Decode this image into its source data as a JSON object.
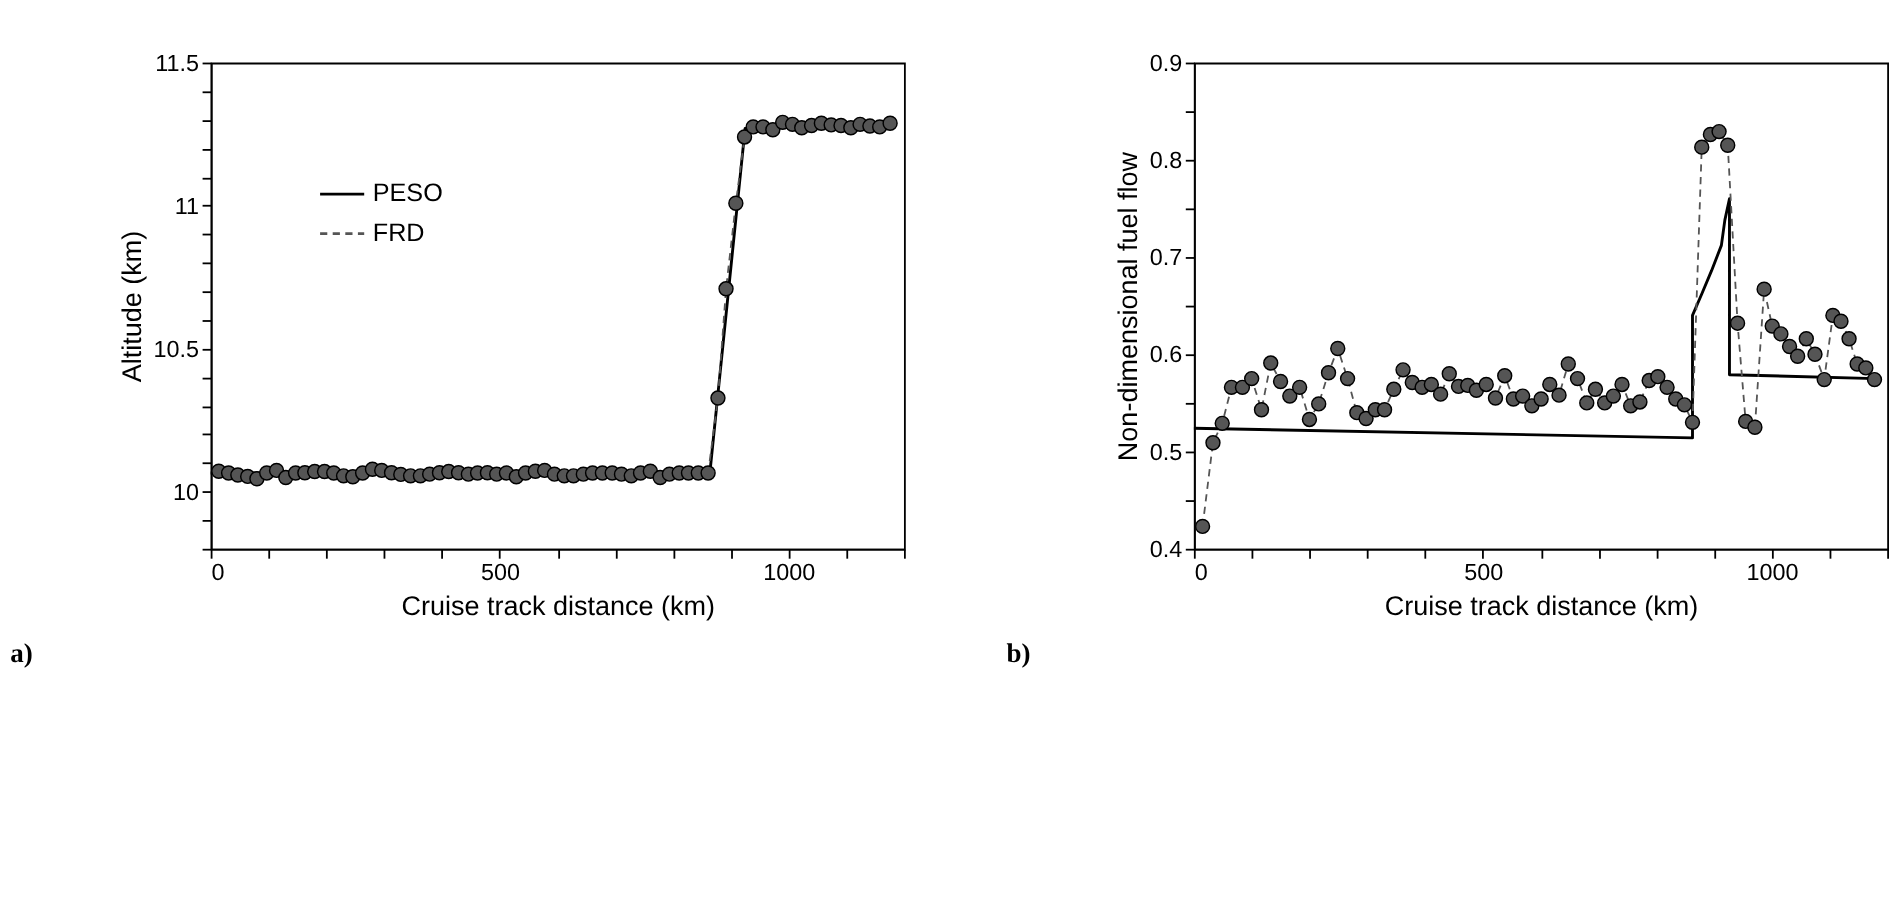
{
  "chart_data": [
    {
      "type": "line",
      "xlabel": "Cruise track distance (km)",
      "ylabel": "Altitude (km)",
      "annotations": [
        "a)"
      ],
      "xlim": [
        0,
        1200
      ],
      "ylim": [
        9.8,
        11.5
      ],
      "xticks": [
        0,
        {
          "value": 100,
          "label": null
        },
        {
          "value": 200,
          "label": null
        },
        {
          "value": 300,
          "label": null
        },
        {
          "value": 400,
          "label": null
        },
        500,
        {
          "value": 600,
          "label": null
        },
        {
          "value": 700,
          "label": null
        },
        {
          "value": 800,
          "label": null
        },
        {
          "value": 900,
          "label": null
        },
        1000,
        {
          "value": 1100,
          "label": null
        },
        {
          "value": 1200,
          "label": null
        }
      ],
      "yticks": [
        {
          "value": 9.8,
          "label": null
        },
        {
          "value": 9.9,
          "label": null
        },
        10,
        {
          "value": 10.1,
          "label": null
        },
        {
          "value": 10.2,
          "label": null
        },
        {
          "value": 10.3,
          "label": null
        },
        {
          "value": 10.4,
          "label": null
        },
        10.5,
        {
          "value": 10.6,
          "label": null
        },
        {
          "value": 10.7,
          "label": null
        },
        {
          "value": 10.8,
          "label": null
        },
        {
          "value": 10.9,
          "label": null
        },
        11,
        {
          "value": 11.1,
          "label": null
        },
        {
          "value": 11.2,
          "label": null
        },
        {
          "value": 11.3,
          "label": null
        },
        {
          "value": 11.4,
          "label": null
        },
        11.5
      ],
      "grid": false,
      "legend": "top left",
      "series": [
        {
          "name": "PESO",
          "color": "#000000",
          "line_style": "solid",
          "marker": "none",
          "x": [
            0,
            864,
            925,
            1176
          ],
          "values": [
            10.065,
            10.065,
            11.27,
            11.28
          ]
        },
        {
          "name": "FRD",
          "color": "#555555",
          "line_style": "dashed",
          "marker": "circle",
          "x": [
            14,
            31,
            47,
            64,
            80,
            97,
            114,
            130,
            147,
            163,
            180,
            197,
            213,
            230,
            246,
            263,
            280,
            296,
            313,
            329,
            346,
            363,
            379,
            396,
            412,
            429,
            446,
            462,
            479,
            495,
            512,
            529,
            545,
            562,
            578,
            595,
            612,
            628,
            645,
            661,
            678,
            695,
            711,
            728,
            744,
            761,
            778,
            794,
            811,
            827,
            844,
            861,
            878,
            892,
            909,
            924,
            939,
            956,
            973,
            990,
            1007,
            1023,
            1040,
            1057,
            1074,
            1091,
            1108,
            1124,
            1141,
            1158,
            1176
          ],
          "values": [
            10.071,
            10.065,
            10.058,
            10.053,
            10.045,
            10.065,
            10.074,
            10.049,
            10.065,
            10.066,
            10.07,
            10.07,
            10.065,
            10.055,
            10.052,
            10.065,
            10.078,
            10.074,
            10.066,
            10.06,
            10.055,
            10.055,
            10.061,
            10.066,
            10.07,
            10.066,
            10.061,
            10.065,
            10.066,
            10.061,
            10.065,
            10.052,
            10.065,
            10.071,
            10.074,
            10.061,
            10.055,
            10.055,
            10.061,
            10.065,
            10.065,
            10.065,
            10.061,
            10.055,
            10.065,
            10.071,
            10.049,
            10.061,
            10.065,
            10.065,
            10.065,
            10.065,
            10.327,
            10.709,
            11.008,
            11.24,
            11.275,
            11.275,
            11.265,
            11.291,
            11.284,
            11.272,
            11.28,
            11.288,
            11.282,
            11.28,
            11.272,
            11.284,
            11.278,
            11.275,
            11.288
          ]
        }
      ]
    },
    {
      "type": "line",
      "xlabel": "Cruise track distance (km)",
      "ylabel": "Non-dimensional fuel flow",
      "annotations": [
        "b)"
      ],
      "xlim": [
        0,
        1200
      ],
      "ylim": [
        0.4,
        0.9
      ],
      "xticks": [
        0,
        {
          "value": 100,
          "label": null
        },
        {
          "value": 200,
          "label": null
        },
        {
          "value": 300,
          "label": null
        },
        {
          "value": 400,
          "label": null
        },
        500,
        {
          "value": 600,
          "label": null
        },
        {
          "value": 700,
          "label": null
        },
        {
          "value": 800,
          "label": null
        },
        {
          "value": 900,
          "label": null
        },
        1000,
        {
          "value": 1100,
          "label": null
        },
        {
          "value": 1200,
          "label": null
        }
      ],
      "yticks": [
        0.4,
        {
          "value": 0.45,
          "label": null
        },
        0.5,
        {
          "value": 0.55,
          "label": null
        },
        0.6,
        {
          "value": 0.65,
          "label": null
        },
        0.7,
        {
          "value": 0.75,
          "label": null
        },
        0.8,
        {
          "value": 0.85,
          "label": null
        },
        0.9
      ],
      "grid": false,
      "legend": false,
      "series": [
        {
          "color": "#000000",
          "line_style": "solid",
          "marker": "none",
          "x": [
            0,
            863,
            863,
            879,
            896,
            913,
            919,
            927,
            927,
            1180
          ],
          "values": [
            0.524,
            0.514,
            0.64,
            0.662,
            0.686,
            0.712,
            0.738,
            0.76,
            0.579,
            0.575
          ]
        },
        {
          "color": "#555555",
          "line_style": "dashed",
          "marker": "circle",
          "x": [
            15,
            33,
            49,
            65,
            84,
            100,
            117,
            133,
            150,
            166,
            183,
            200,
            216,
            233,
            249,
            266,
            282,
            298,
            314,
            330,
            346,
            362,
            378,
            395,
            411,
            427,
            442,
            458,
            474,
            489,
            506,
            522,
            538,
            553,
            569,
            585,
            601,
            616,
            632,
            648,
            664,
            680,
            695,
            711,
            726,
            741,
            756,
            772,
            788,
            803,
            819,
            834,
            849,
            863,
            879,
            894,
            909,
            924,
            941,
            955,
            971,
            987,
            1001,
            1016,
            1031,
            1045,
            1060,
            1075,
            1091,
            1106,
            1120,
            1134,
            1148,
            1163,
            1178
          ],
          "values": [
            0.423,
            0.509,
            0.529,
            0.566,
            0.566,
            0.575,
            0.543,
            0.591,
            0.572,
            0.557,
            0.566,
            0.533,
            0.549,
            0.581,
            0.606,
            0.575,
            0.54,
            0.534,
            0.543,
            0.543,
            0.564,
            0.584,
            0.571,
            0.566,
            0.569,
            0.559,
            0.58,
            0.567,
            0.568,
            0.563,
            0.569,
            0.555,
            0.578,
            0.554,
            0.557,
            0.547,
            0.554,
            0.569,
            0.558,
            0.59,
            0.575,
            0.55,
            0.564,
            0.55,
            0.557,
            0.569,
            0.547,
            0.551,
            0.573,
            0.577,
            0.566,
            0.554,
            0.548,
            0.53,
            0.813,
            0.826,
            0.829,
            0.815,
            0.632,
            0.531,
            0.525,
            0.667,
            0.629,
            0.621,
            0.608,
            0.598,
            0.616,
            0.6,
            0.574,
            0.64,
            0.634,
            0.616,
            0.59,
            0.586,
            0.574
          ]
        }
      ]
    }
  ]
}
